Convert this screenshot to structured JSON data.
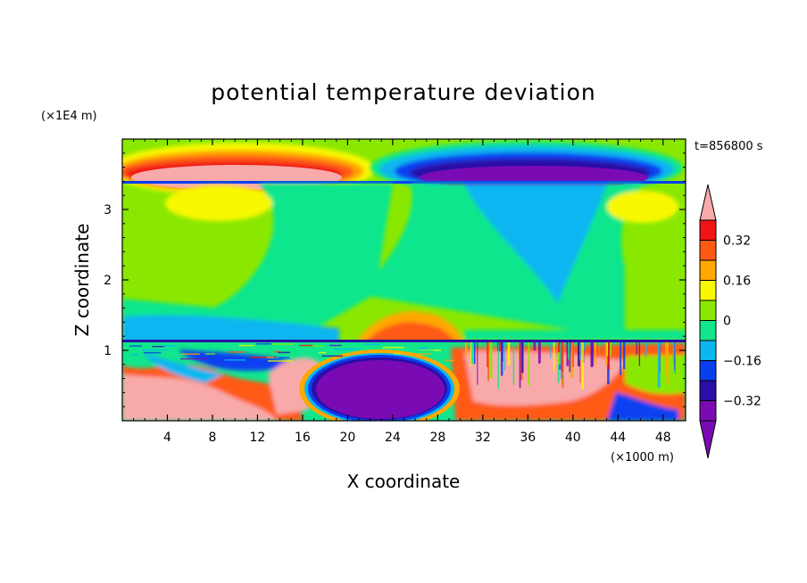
{
  "chart_data": {
    "type": "heatmap",
    "title": "potential temperature deviation",
    "xlabel": "X coordinate",
    "ylabel": "Z coordinate",
    "x_units": "(×1000 m)",
    "y_units": "(×1E4 m)",
    "time_label": "t=856800 s",
    "xlim": [
      0,
      50
    ],
    "ylim": [
      0,
      4
    ],
    "x_ticks": [
      4,
      8,
      12,
      16,
      20,
      24,
      28,
      32,
      36,
      40,
      44,
      48
    ],
    "y_ticks": [
      1,
      2,
      3
    ],
    "colorbar": {
      "labels": [
        "0.32",
        "0.16",
        "0",
        "-0.16",
        "-0.32"
      ],
      "label_values": [
        0.32,
        0.16,
        0,
        -0.16,
        -0.32
      ],
      "levels": [
        -0.4,
        -0.32,
        -0.24,
        -0.16,
        -0.08,
        0,
        0.08,
        0.16,
        0.24,
        0.32,
        0.4
      ],
      "colors": [
        "#7a0bb4",
        "#2a0ea6",
        "#0a3ff0",
        "#0ab6f0",
        "#11e68c",
        "#8ae800",
        "#f8f800",
        "#ffa800",
        "#ff5a14",
        "#f01414"
      ],
      "under_color": "#7a0bb4",
      "over_color": "#f8aaaa",
      "extend": "both"
    }
  },
  "page": {
    "time_label": "t=856800 s",
    "colorbar_labels": [
      "0.32",
      "0.16",
      "0",
      "−0.16",
      "−0.32"
    ]
  }
}
